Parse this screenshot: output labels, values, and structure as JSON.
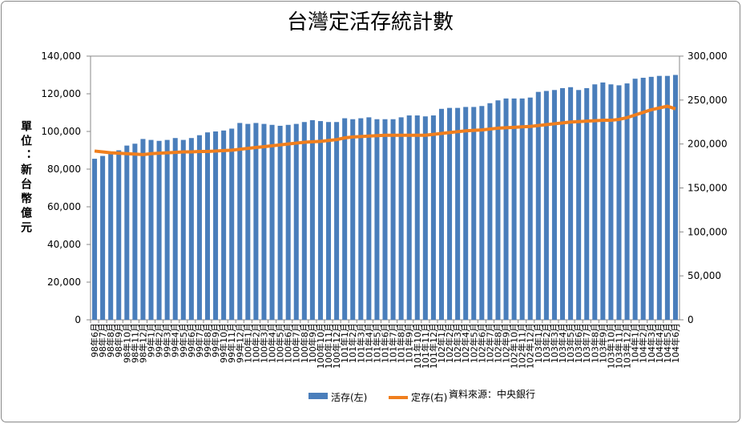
{
  "chart_data": {
    "type": "bar-line",
    "title": "台灣定活存統計數",
    "y_label": "單位：新台幣億元",
    "annotation": "資料來源：中央銀行",
    "categories": [
      "98年6月",
      "98年7月",
      "98年8月",
      "98年9月",
      "98年10月",
      "98年11月",
      "98年12月",
      "99年1月",
      "99年2月",
      "99年3月",
      "99年4月",
      "99年5月",
      "99年6月",
      "99年7月",
      "99年8月",
      "99年9月",
      "99年10月",
      "99年11月",
      "99年12月",
      "100年1月",
      "100年2月",
      "100年3月",
      "100年4月",
      "100年5月",
      "100年6月",
      "100年7月",
      "100年8月",
      "100年9月",
      "100年10月",
      "100年11月",
      "100年12月",
      "101年1月",
      "101年2月",
      "101年3月",
      "101年4月",
      "101年5月",
      "101年6月",
      "101年7月",
      "101年8月",
      "101年9月",
      "101年10月",
      "101年11月",
      "101年12月",
      "102年1月",
      "102年2月",
      "102年3月",
      "102年4月",
      "102年5月",
      "102年6月",
      "102年7月",
      "102年8月",
      "102年9月",
      "102年10月",
      "102年11月",
      "102年12月",
      "103年1月",
      "103年2月",
      "103年3月",
      "103年4月",
      "103年5月",
      "103年6月",
      "103年7月",
      "103年8月",
      "103年9月",
      "103年10月",
      "103年11月",
      "103年12月",
      "104年1月",
      "104年2月",
      "104年3月",
      "104年4月",
      "104年5月",
      "104年6月"
    ],
    "series": [
      {
        "name": "活存(左)",
        "kind": "bar",
        "axis": "y",
        "color": "#4a7ebb",
        "values": [
          85500,
          87000,
          89000,
          90000,
          92500,
          93500,
          96000,
          95500,
          95000,
          95500,
          96500,
          95500,
          96500,
          98000,
          99500,
          100000,
          100500,
          101500,
          104500,
          104000,
          104500,
          104000,
          103500,
          103000,
          103500,
          104000,
          105000,
          106000,
          105500,
          105000,
          105000,
          107000,
          106500,
          107000,
          107500,
          106500,
          106500,
          106500,
          107500,
          108500,
          108500,
          108000,
          108500,
          112000,
          112500,
          112500,
          113000,
          113000,
          113500,
          115000,
          116500,
          117500,
          117500,
          117500,
          118000,
          121000,
          121500,
          122000,
          123000,
          123500,
          122000,
          123000,
          125000,
          126000,
          125000,
          124500,
          125500,
          128000,
          128500,
          129000,
          129500,
          129500,
          130000
        ]
      },
      {
        "name": "定存(右)",
        "kind": "line",
        "axis": "y2",
        "color": "#f07f1e",
        "values": [
          192000,
          191000,
          190000,
          189500,
          189000,
          188500,
          188000,
          189000,
          189500,
          190000,
          190500,
          191000,
          191000,
          191500,
          191500,
          192000,
          192500,
          193000,
          194000,
          195000,
          196000,
          197000,
          198000,
          199000,
          200000,
          201000,
          202000,
          202500,
          203000,
          204000,
          205000,
          207000,
          208000,
          208500,
          209000,
          209500,
          210000,
          210000,
          210000,
          210000,
          210000,
          210000,
          211000,
          212000,
          213000,
          214000,
          215000,
          215500,
          216000,
          217000,
          218000,
          218500,
          219000,
          219500,
          220000,
          221000,
          222000,
          223000,
          224000,
          225000,
          225500,
          226000,
          226500,
          227000,
          227000,
          228000,
          230000,
          233000,
          236000,
          239000,
          241000,
          243000,
          240000
        ]
      }
    ],
    "ylim": [
      0,
      140000
    ],
    "yticks": [
      0,
      {
        "value": 20000,
        "label": "20,000"
      },
      {
        "value": 40000,
        "label": "40,000"
      },
      {
        "value": 60000,
        "label": "60,000"
      },
      {
        "value": 80000,
        "label": "80,000"
      },
      {
        "value": 100000,
        "label": "100,000"
      },
      {
        "value": 120000,
        "label": "120,000"
      },
      {
        "value": 140000,
        "label": "140,000"
      }
    ],
    "y2lim": [
      0,
      300000
    ],
    "y2ticks": [
      0,
      {
        "value": 50000,
        "label": "50,000"
      },
      {
        "value": 100000,
        "label": "100,000"
      },
      {
        "value": 150000,
        "label": "150,000"
      },
      {
        "value": 200000,
        "label": "200,000"
      },
      {
        "value": 250000,
        "label": "250,000"
      },
      {
        "value": 300000,
        "label": "300,000"
      }
    ],
    "legend": "bottom"
  }
}
